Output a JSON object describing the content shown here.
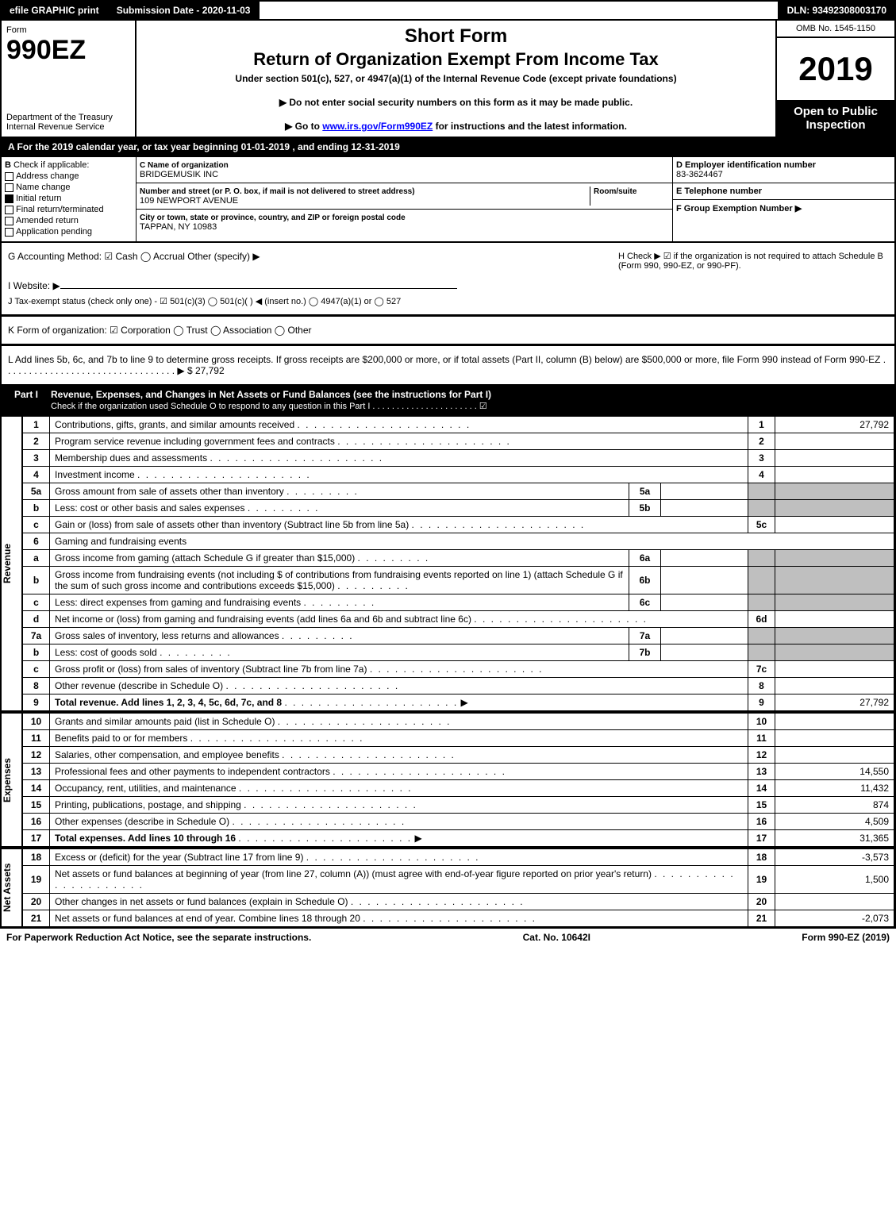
{
  "topbar": {
    "efile": "efile GRAPHIC print",
    "subdate": "Submission Date - 2020-11-03",
    "dln": "DLN: 93492308003170"
  },
  "header": {
    "form": "Form",
    "formNo": "990EZ",
    "dept": "Department of the Treasury\nInternal Revenue Service",
    "title": "Short Form",
    "subtitle": "Return of Organization Exempt From Income Tax",
    "under": "Under section 501(c), 527, or 4947(a)(1) of the Internal Revenue Code (except private foundations)",
    "note1": "▶ Do not enter social security numbers on this form as it may be made public.",
    "note2": "▶ Go to www.irs.gov/Form990EZ for instructions and the latest information.",
    "omb": "OMB No. 1545-1150",
    "year": "2019",
    "open": "Open to Public Inspection"
  },
  "taxyear": "A  For the 2019 calendar year, or tax year beginning 01-01-2019 , and ending 12-31-2019",
  "B": {
    "title": "Check if applicable:",
    "opts": [
      "Address change",
      "Name change",
      "Initial return",
      "Final return/terminated",
      "Amended return",
      "Application pending"
    ],
    "checked": [
      false,
      false,
      true,
      false,
      false,
      false
    ]
  },
  "C": {
    "nameLbl": "C Name of organization",
    "name": "BRIDGEMUSIK INC",
    "addrLbl": "Number and street (or P. O. box, if mail is not delivered to street address)",
    "room": "Room/suite",
    "addr": "109 NEWPORT AVENUE",
    "cityLbl": "City or town, state or province, country, and ZIP or foreign postal code",
    "city": "TAPPAN, NY  10983"
  },
  "D": {
    "einLbl": "D Employer identification number",
    "ein": "83-3624467",
    "telLbl": "E Telephone number",
    "tel": "",
    "grpLbl": "F Group Exemption Number  ▶",
    "grp": ""
  },
  "G": "G Accounting Method:   ☑ Cash  ◯ Accrual   Other (specify) ▶",
  "H": "H  Check ▶ ☑ if the organization is not required to attach Schedule B (Form 990, 990-EZ, or 990-PF).",
  "I": "I Website: ▶",
  "J": "J Tax-exempt status (check only one) - ☑ 501(c)(3) ◯ 501(c)(  ) ◀ (insert no.) ◯ 4947(a)(1) or ◯ 527",
  "K": "K Form of organization:  ☑ Corporation  ◯ Trust  ◯ Association  ◯ Other",
  "L": "L Add lines 5b, 6c, and 7b to line 9 to determine gross receipts. If gross receipts are $200,000 or more, or if total assets (Part II, column (B) below) are $500,000 or more, file Form 990 instead of Form 990-EZ . . . . . . . . . . . . . . . . . . . . . . . . . . . . . . . . . ▶ $ 27,792",
  "partI": {
    "label": "Part I",
    "title": "Revenue, Expenses, and Changes in Net Assets or Fund Balances (see the instructions for Part I)",
    "check": "Check if the organization used Schedule O to respond to any question in this Part I . . . . . . . . . . . . . . . . . . . . . . ☑"
  },
  "sections": {
    "revenue": "Revenue",
    "expenses": "Expenses",
    "netassets": "Net Assets"
  },
  "lines": [
    {
      "n": "1",
      "d": "Contributions, gifts, grants, and similar amounts received",
      "r": "1",
      "v": "27,792"
    },
    {
      "n": "2",
      "d": "Program service revenue including government fees and contracts",
      "r": "2",
      "v": ""
    },
    {
      "n": "3",
      "d": "Membership dues and assessments",
      "r": "3",
      "v": ""
    },
    {
      "n": "4",
      "d": "Investment income",
      "r": "4",
      "v": ""
    },
    {
      "n": "5a",
      "d": "Gross amount from sale of assets other than inventory",
      "s": "5a",
      "sv": "",
      "grey": true
    },
    {
      "n": "b",
      "d": "Less: cost or other basis and sales expenses",
      "s": "5b",
      "sv": "",
      "grey": true
    },
    {
      "n": "c",
      "d": "Gain or (loss) from sale of assets other than inventory (Subtract line 5b from line 5a)",
      "r": "5c",
      "v": ""
    },
    {
      "n": "6",
      "d": "Gaming and fundraising events",
      "plain": true
    },
    {
      "n": "a",
      "d": "Gross income from gaming (attach Schedule G if greater than $15,000)",
      "s": "6a",
      "sv": "",
      "grey": true
    },
    {
      "n": "b",
      "d": "Gross income from fundraising events (not including $                          of contributions from fundraising events reported on line 1) (attach Schedule G if the sum of such gross income and contributions exceeds $15,000)",
      "s": "6b",
      "sv": "",
      "grey": true
    },
    {
      "n": "c",
      "d": "Less: direct expenses from gaming and fundraising events",
      "s": "6c",
      "sv": "",
      "grey": true
    },
    {
      "n": "d",
      "d": "Net income or (loss) from gaming and fundraising events (add lines 6a and 6b and subtract line 6c)",
      "r": "6d",
      "v": ""
    },
    {
      "n": "7a",
      "d": "Gross sales of inventory, less returns and allowances",
      "s": "7a",
      "sv": "",
      "grey": true
    },
    {
      "n": "b",
      "d": "Less: cost of goods sold",
      "s": "7b",
      "sv": "",
      "grey": true
    },
    {
      "n": "c",
      "d": "Gross profit or (loss) from sales of inventory (Subtract line 7b from line 7a)",
      "r": "7c",
      "v": ""
    },
    {
      "n": "8",
      "d": "Other revenue (describe in Schedule O)",
      "r": "8",
      "v": ""
    },
    {
      "n": "9",
      "d": "Total revenue. Add lines 1, 2, 3, 4, 5c, 6d, 7c, and 8",
      "r": "9",
      "v": "27,792",
      "bold": true,
      "arrow": true
    }
  ],
  "exp": [
    {
      "n": "10",
      "d": "Grants and similar amounts paid (list in Schedule O)",
      "r": "10",
      "v": ""
    },
    {
      "n": "11",
      "d": "Benefits paid to or for members",
      "r": "11",
      "v": ""
    },
    {
      "n": "12",
      "d": "Salaries, other compensation, and employee benefits",
      "r": "12",
      "v": ""
    },
    {
      "n": "13",
      "d": "Professional fees and other payments to independent contractors",
      "r": "13",
      "v": "14,550"
    },
    {
      "n": "14",
      "d": "Occupancy, rent, utilities, and maintenance",
      "r": "14",
      "v": "11,432"
    },
    {
      "n": "15",
      "d": "Printing, publications, postage, and shipping",
      "r": "15",
      "v": "874"
    },
    {
      "n": "16",
      "d": "Other expenses (describe in Schedule O)",
      "r": "16",
      "v": "4,509"
    },
    {
      "n": "17",
      "d": "Total expenses. Add lines 10 through 16",
      "r": "17",
      "v": "31,365",
      "bold": true,
      "arrow": true
    }
  ],
  "na": [
    {
      "n": "18",
      "d": "Excess or (deficit) for the year (Subtract line 17 from line 9)",
      "r": "18",
      "v": "-3,573"
    },
    {
      "n": "19",
      "d": "Net assets or fund balances at beginning of year (from line 27, column (A)) (must agree with end-of-year figure reported on prior year's return)",
      "r": "19",
      "v": "1,500"
    },
    {
      "n": "20",
      "d": "Other changes in net assets or fund balances (explain in Schedule O)",
      "r": "20",
      "v": ""
    },
    {
      "n": "21",
      "d": "Net assets or fund balances at end of year. Combine lines 18 through 20",
      "r": "21",
      "v": "-2,073"
    }
  ],
  "footer": {
    "left": "For Paperwork Reduction Act Notice, see the separate instructions.",
    "mid": "Cat. No. 10642I",
    "right": "Form 990-EZ (2019)"
  },
  "colors": {
    "black": "#000000",
    "grey": "#bfbfbf"
  }
}
